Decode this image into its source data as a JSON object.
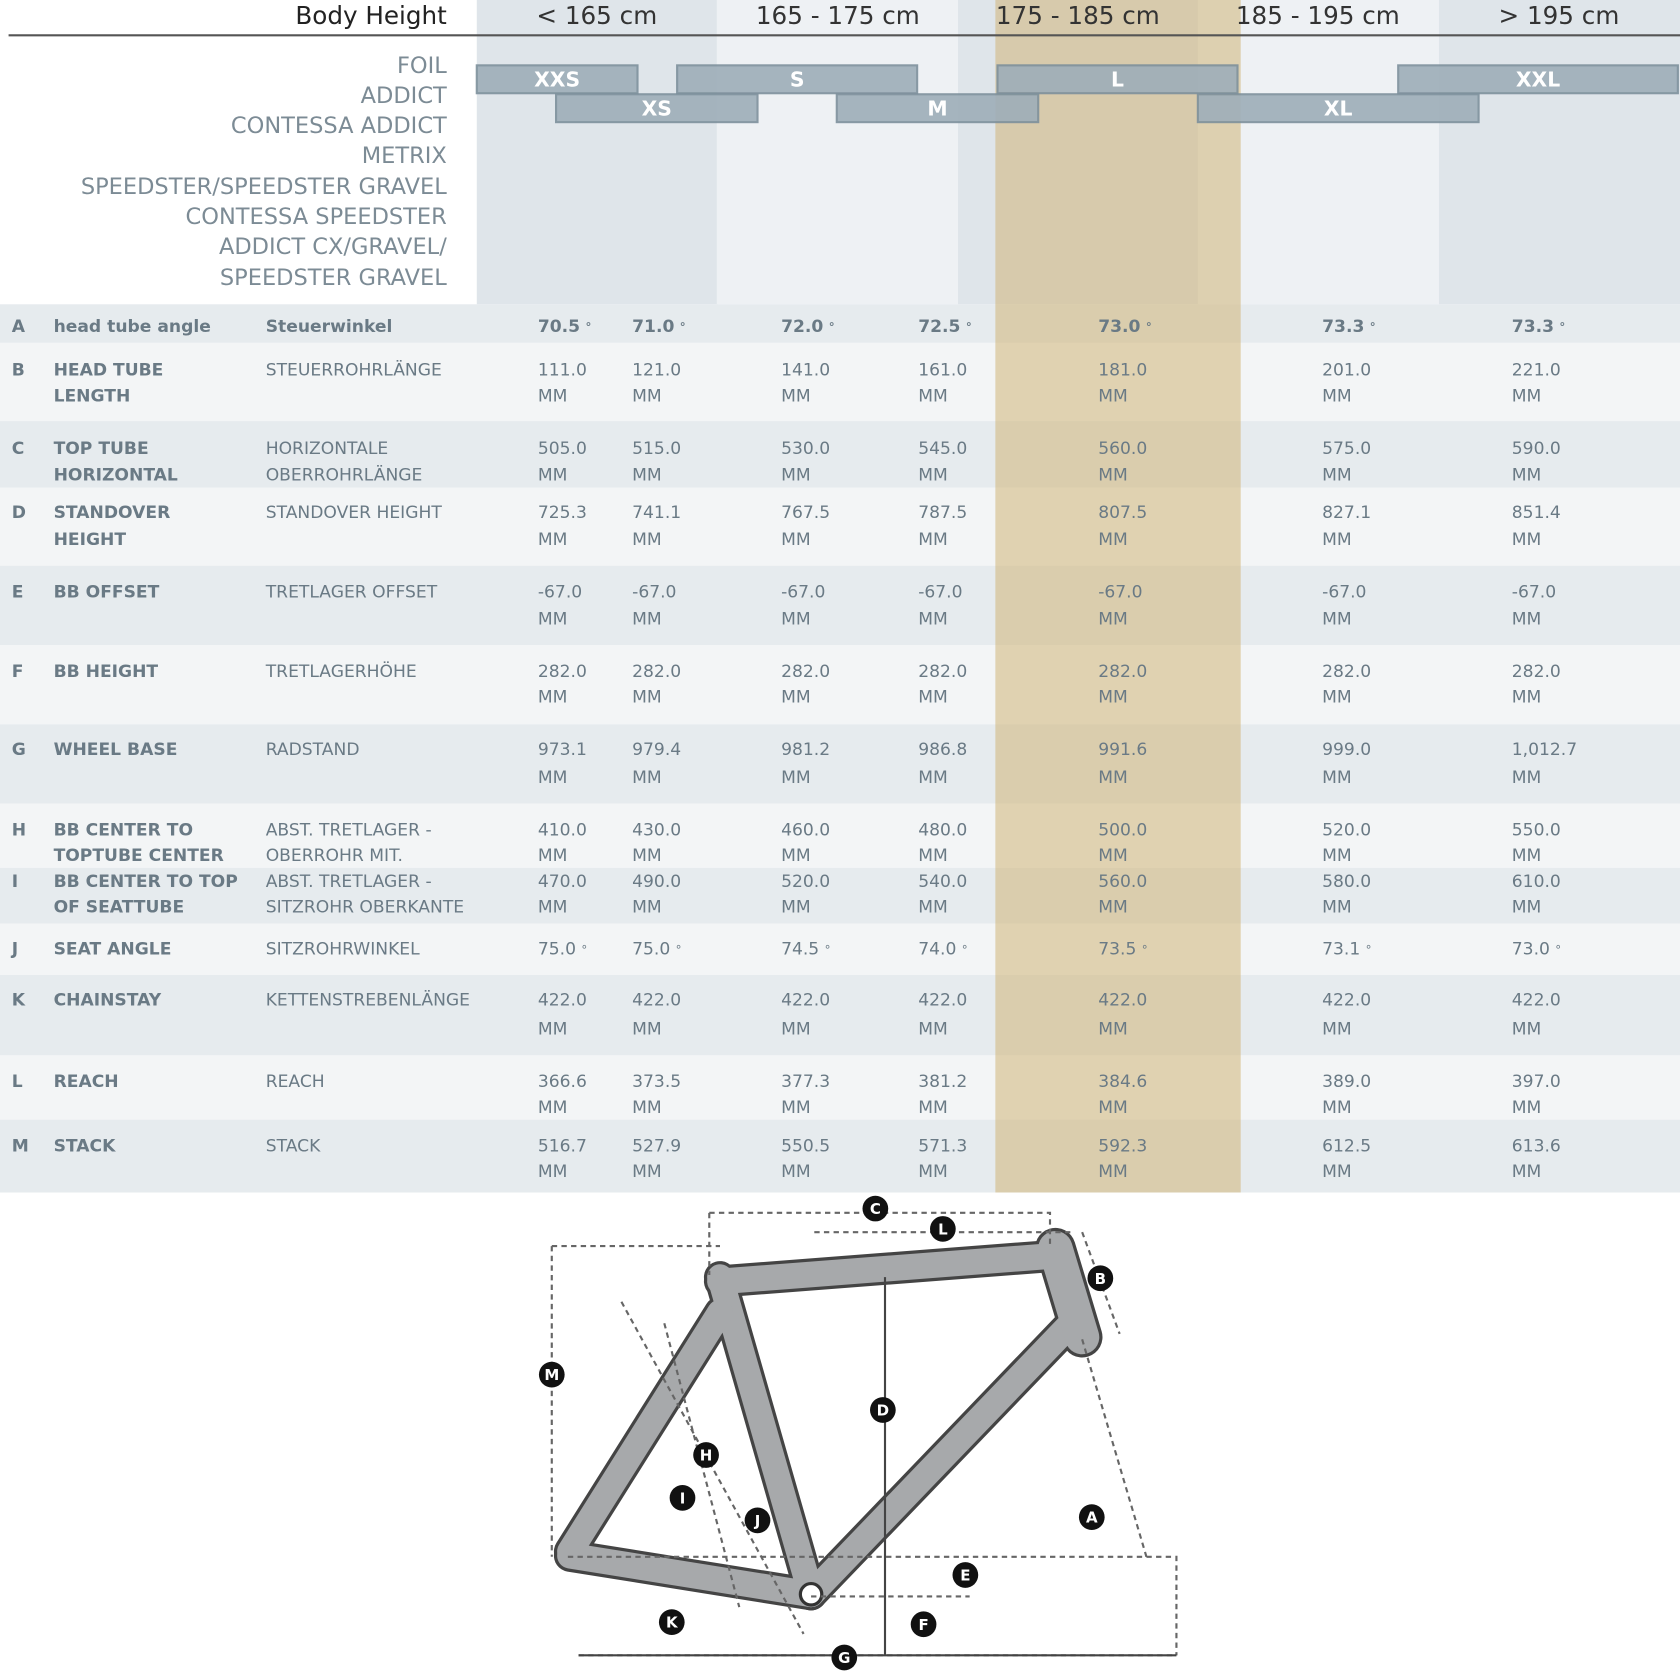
{
  "header": {
    "title": "Body Height",
    "columns": [
      "< 165 cm",
      "165 - 175 cm",
      "175 - 185 cm",
      "185 - 195 cm",
      "> 195 cm"
    ]
  },
  "models": [
    "FOIL",
    "ADDICT",
    "CONTESSA ADDICT",
    "METRIX",
    "SPEEDSTER/SPEEDSTER GRAVEL",
    "CONTESSA SPEEDSTER",
    "ADDICT CX/GRAVEL/",
    "SPEEDSTER GRAVEL"
  ],
  "sizes": [
    "XXS",
    "XS",
    "S",
    "M",
    "L",
    "XL",
    "XXL"
  ],
  "table": {
    "rows": [
      {
        "letter": "A",
        "name": [
          "head tube angle"
        ],
        "name_de": [
          "Steuerwinkel"
        ],
        "values": [
          "70.5",
          "71.0",
          "72.0",
          "72.5",
          "73.0",
          "73.3",
          "73.3"
        ],
        "unit": "°"
      },
      {
        "letter": "B",
        "name": [
          "HEAD TUBE",
          "LENGTH"
        ],
        "name_de": [
          "STEUERROHRLÄNGE"
        ],
        "values": [
          "111.0",
          "121.0",
          "141.0",
          "161.0",
          "181.0",
          "201.0",
          "221.0"
        ],
        "unit": "MM"
      },
      {
        "letter": "C",
        "name": [
          "TOP TUBE",
          "HORIZONTAL"
        ],
        "name_de": [
          "HORIZONTALE",
          "OBERROHRLÄNGE"
        ],
        "values": [
          "505.0",
          "515.0",
          "530.0",
          "545.0",
          "560.0",
          "575.0",
          "590.0"
        ],
        "unit": "MM"
      },
      {
        "letter": "D",
        "name": [
          "STANDOVER",
          "HEIGHT"
        ],
        "name_de": [
          "STANDOVER HEIGHT"
        ],
        "values": [
          "725.3",
          "741.1",
          "767.5",
          "787.5",
          "807.5",
          "827.1",
          "851.4"
        ],
        "unit": "MM"
      },
      {
        "letter": "E",
        "name": [
          "BB OFFSET"
        ],
        "name_de": [
          "TRETLAGER OFFSET"
        ],
        "values": [
          "-67.0",
          "-67.0",
          "-67.0",
          "-67.0",
          "-67.0",
          "-67.0",
          "-67.0"
        ],
        "unit": "MM"
      },
      {
        "letter": "F",
        "name": [
          "BB HEIGHT"
        ],
        "name_de": [
          "TRETLAGERHÖHE"
        ],
        "values": [
          "282.0",
          "282.0",
          "282.0",
          "282.0",
          "282.0",
          "282.0",
          "282.0"
        ],
        "unit": "MM"
      },
      {
        "letter": "G",
        "name": [
          "WHEEL BASE"
        ],
        "name_de": [
          "RADSTAND"
        ],
        "values": [
          "973.1",
          "979.4",
          "981.2",
          "986.8",
          "991.6",
          "999.0",
          "1,012.7"
        ],
        "unit": "MM"
      },
      {
        "letter": "H",
        "name": [
          "BB CENTER TO",
          "TOPTUBE CENTER"
        ],
        "name_de": [
          "ABST. TRETLAGER -",
          "OBERROHR MIT."
        ],
        "values": [
          "410.0",
          "430.0",
          "460.0",
          "480.0",
          "500.0",
          "520.0",
          "550.0"
        ],
        "unit": "MM"
      },
      {
        "letter": "I",
        "name": [
          "BB CENTER TO TOP",
          "OF SEATTUBE"
        ],
        "name_de": [
          "ABST. TRETLAGER -",
          "SITZROHR OBERKANTE"
        ],
        "values": [
          "470.0",
          "490.0",
          "520.0",
          "540.0",
          "560.0",
          "580.0",
          "610.0"
        ],
        "unit": "MM"
      },
      {
        "letter": "J",
        "name": [
          "SEAT ANGLE"
        ],
        "name_de": [
          "SITZROHRWINKEL"
        ],
        "values": [
          "75.0",
          "75.0",
          "74.5",
          "74.0",
          "73.5",
          "73.1",
          "73.0"
        ],
        "unit": "°"
      },
      {
        "letter": "K",
        "name": [
          "CHAINSTAY"
        ],
        "name_de": [
          "KETTENSTREBENLÄNGE"
        ],
        "values": [
          "422.0",
          "422.0",
          "422.0",
          "422.0",
          "422.0",
          "422.0",
          "422.0"
        ],
        "unit": "MM"
      },
      {
        "letter": "L",
        "name": [
          "REACH"
        ],
        "name_de": [
          "REACH"
        ],
        "values": [
          "366.6",
          "373.5",
          "377.3",
          "381.2",
          "384.6",
          "389.0",
          "397.0"
        ],
        "unit": "MM"
      },
      {
        "letter": "M",
        "name": [
          "STACK"
        ],
        "name_de": [
          "STACK"
        ],
        "values": [
          "516.7",
          "527.9",
          "550.5",
          "571.3",
          "592.3",
          "612.5",
          "613.6"
        ],
        "unit": "MM"
      }
    ]
  },
  "diagram": {
    "labels": [
      "A",
      "B",
      "C",
      "D",
      "E",
      "F",
      "G",
      "H",
      "I",
      "J",
      "K",
      "L",
      "M"
    ]
  }
}
